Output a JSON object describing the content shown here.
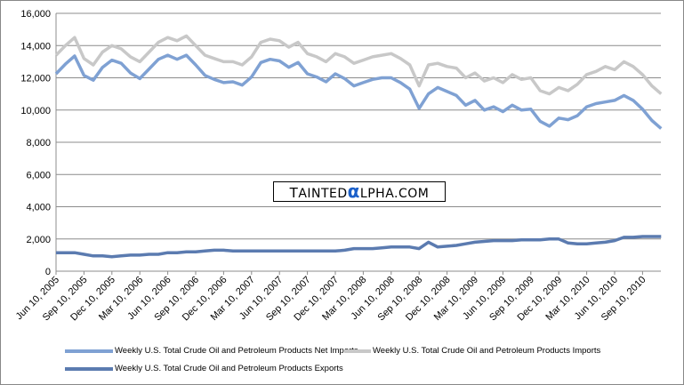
{
  "chart_data": {
    "type": "line",
    "title": "",
    "xlabel": "",
    "ylabel": "",
    "ylim": [
      0,
      16000
    ],
    "yticks": [
      "0",
      "2,000",
      "4,000",
      "6,000",
      "8,000",
      "10,000",
      "12,000",
      "14,000",
      "16,000"
    ],
    "ytick_values": [
      0,
      2000,
      4000,
      6000,
      8000,
      10000,
      12000,
      14000,
      16000
    ],
    "grid": true,
    "x_unit": "month index from Jun 2005 (approx., monthly resampled)",
    "xtick_labels": [
      "Jun 10, 2005",
      "Sep 10, 2005",
      "Dec 10, 2005",
      "Mar 10, 2006",
      "Jun 10, 2006",
      "Sep 10, 2006",
      "Dec 10, 2006",
      "Mar 10, 2007",
      "Jun 10, 2007",
      "Sep 10, 2007",
      "Dec 10, 2007",
      "Mar 10, 2008",
      "Jun 10, 2008",
      "Sep 10, 2008",
      "Dec 10, 2008",
      "Mar 10, 2009",
      "Jun 10, 2009",
      "Sep 10, 2009",
      "Dec 10, 2009",
      "Mar 10, 2010",
      "Jun 10, 2010",
      "Sep 10, 2010"
    ],
    "legend_position": "bottom",
    "series": [
      {
        "name": "Weekly U.S. Total Crude Oil and Petroleum Products Net Imports",
        "color": "#7fa1d3",
        "values": [
          12250,
          12850,
          13350,
          12150,
          11850,
          12650,
          13100,
          12900,
          12300,
          11950,
          12550,
          13150,
          13400,
          13150,
          13400,
          12800,
          12150,
          11900,
          11700,
          11750,
          11550,
          12050,
          12950,
          13150,
          13050,
          12650,
          12950,
          12250,
          12050,
          11750,
          12250,
          11950,
          11500,
          11700,
          11900,
          12000,
          12000,
          11700,
          11300,
          10100,
          11000,
          11400,
          11150,
          10900,
          10300,
          10600,
          10000,
          10200,
          9900,
          10300,
          10000,
          10050,
          9300,
          9000,
          9500,
          9400,
          9650,
          10200,
          10400,
          10500,
          10600,
          10900,
          10600,
          10050,
          9350,
          8850
        ]
      },
      {
        "name": "Weekly U.S. Total Crude Oil and Petroleum Products Imports",
        "color": "#c8c8c8",
        "values": [
          13400,
          14000,
          14500,
          13200,
          12800,
          13600,
          14000,
          13800,
          13300,
          13000,
          13600,
          14200,
          14500,
          14300,
          14600,
          14000,
          13400,
          13200,
          13000,
          13000,
          12800,
          13300,
          14200,
          14400,
          14300,
          13900,
          14200,
          13500,
          13300,
          13000,
          13500,
          13300,
          12900,
          13100,
          13300,
          13400,
          13500,
          13200,
          12800,
          11500,
          12800,
          12900,
          12700,
          12600,
          12000,
          12300,
          11800,
          12000,
          11700,
          12200,
          11900,
          12000,
          11200,
          11000,
          11400,
          11200,
          11600,
          12200,
          12400,
          12700,
          12500,
          13000,
          12700,
          12200,
          11500,
          11000
        ]
      },
      {
        "name": "Weekly U.S. Total Crude Oil and Petroleum Products Exports",
        "color": "#5b7bb0",
        "values": [
          1150,
          1150,
          1150,
          1050,
          950,
          950,
          900,
          950,
          1000,
          1000,
          1050,
          1050,
          1150,
          1150,
          1200,
          1200,
          1250,
          1300,
          1300,
          1250,
          1250,
          1250,
          1250,
          1250,
          1250,
          1250,
          1250,
          1250,
          1250,
          1250,
          1250,
          1300,
          1400,
          1400,
          1400,
          1450,
          1500,
          1500,
          1500,
          1400,
          1800,
          1500,
          1550,
          1600,
          1700,
          1800,
          1850,
          1900,
          1900,
          1900,
          1950,
          1950,
          1950,
          2000,
          2000,
          1750,
          1700,
          1700,
          1750,
          1800,
          1900,
          2100,
          2100,
          2150,
          2150,
          2150
        ]
      }
    ]
  },
  "watermark": "TAINTEDαLPHA.COM"
}
